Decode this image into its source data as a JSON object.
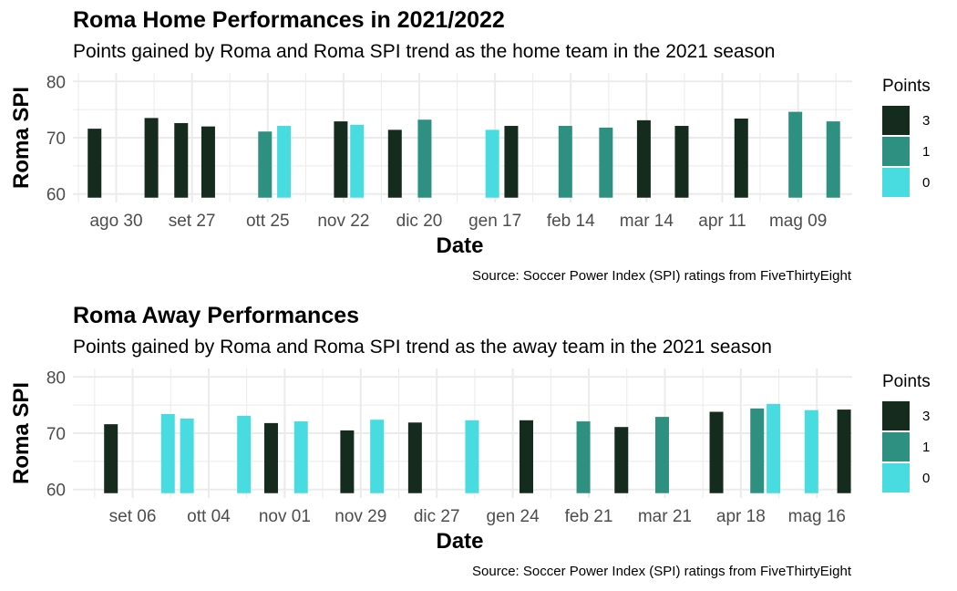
{
  "colors": {
    "points_3": "#152b1e",
    "points_1": "#2e9080",
    "points_0": "#48dce0",
    "grid": "#ebebeb"
  },
  "legend": {
    "title": "Points",
    "items": [
      {
        "label": "3",
        "color": "#152b1e"
      },
      {
        "label": "1",
        "color": "#2e9080"
      },
      {
        "label": "0",
        "color": "#48dce0"
      }
    ]
  },
  "source": "Source: Soccer Power Index (SPI) ratings from FiveThirtyEight",
  "chart_data": [
    {
      "type": "bar",
      "title": "Roma Home Performances in 2021/2022",
      "subtitle": "Points gained by Roma and Roma SPI trend as the home team in the 2021 season",
      "xlabel": "Date",
      "ylabel": "Roma SPI",
      "ylim": [
        58.5,
        81.5
      ],
      "yticks": [
        60,
        70,
        80
      ],
      "xlim": [
        "2021-08-14",
        "2022-05-29"
      ],
      "xtick_dates": [
        "2021-08-30",
        "2021-09-27",
        "2021-10-25",
        "2021-11-22",
        "2021-12-20",
        "2022-01-17",
        "2022-02-14",
        "2022-03-14",
        "2022-04-11",
        "2022-05-09"
      ],
      "xtick_labels": [
        "ago 30",
        "set 27",
        "ott 25",
        "nov 22",
        "dic 20",
        "gen 17",
        "feb 14",
        "mar 14",
        "apr 11",
        "mag 09"
      ],
      "grid": true,
      "legend_position": "right",
      "bars": [
        {
          "date": "2021-08-22",
          "spi": 71.6,
          "points": 3
        },
        {
          "date": "2021-09-12",
          "spi": 73.5,
          "points": 3
        },
        {
          "date": "2021-09-23",
          "spi": 72.6,
          "points": 3
        },
        {
          "date": "2021-10-03",
          "spi": 72.0,
          "points": 3
        },
        {
          "date": "2021-10-24",
          "spi": 71.1,
          "points": 1
        },
        {
          "date": "2021-10-31",
          "spi": 72.1,
          "points": 0
        },
        {
          "date": "2021-11-21",
          "spi": 72.9,
          "points": 3
        },
        {
          "date": "2021-11-27",
          "spi": 72.3,
          "points": 0
        },
        {
          "date": "2021-12-11",
          "spi": 71.4,
          "points": 3
        },
        {
          "date": "2021-12-22",
          "spi": 73.2,
          "points": 1
        },
        {
          "date": "2022-01-16",
          "spi": 71.4,
          "points": 0
        },
        {
          "date": "2022-01-23",
          "spi": 72.1,
          "points": 3
        },
        {
          "date": "2022-02-12",
          "spi": 72.1,
          "points": 1
        },
        {
          "date": "2022-02-27",
          "spi": 71.8,
          "points": 1
        },
        {
          "date": "2022-03-13",
          "spi": 73.1,
          "points": 3
        },
        {
          "date": "2022-03-27",
          "spi": 72.1,
          "points": 3
        },
        {
          "date": "2022-04-18",
          "spi": 73.4,
          "points": 3
        },
        {
          "date": "2022-05-08",
          "spi": 74.6,
          "points": 1
        },
        {
          "date": "2022-05-22",
          "spi": 72.9,
          "points": 1
        }
      ]
    },
    {
      "type": "bar",
      "title": "Roma Away Performances",
      "subtitle": "Points gained by Roma and Roma SPI trend as the away team in the 2021 season",
      "xlabel": "Date",
      "ylabel": "Roma SPI",
      "ylim": [
        58.5,
        81.5
      ],
      "yticks": [
        60,
        70,
        80
      ],
      "xlim": [
        "2021-08-15",
        "2022-05-29"
      ],
      "xtick_dates": [
        "2021-09-06",
        "2021-10-04",
        "2021-11-01",
        "2021-11-29",
        "2021-12-27",
        "2022-01-24",
        "2022-02-21",
        "2022-03-21",
        "2022-04-18",
        "2022-05-16"
      ],
      "xtick_labels": [
        "set 06",
        "ott 04",
        "nov 01",
        "nov 29",
        "dic 27",
        "gen 24",
        "feb 21",
        "mar 21",
        "apr 18",
        "mag 16"
      ],
      "grid": true,
      "legend_position": "right",
      "bars": [
        {
          "date": "2021-08-29",
          "spi": 71.6,
          "points": 3
        },
        {
          "date": "2021-09-19",
          "spi": 73.4,
          "points": 0
        },
        {
          "date": "2021-09-26",
          "spi": 72.6,
          "points": 0
        },
        {
          "date": "2021-10-17",
          "spi": 73.1,
          "points": 0
        },
        {
          "date": "2021-10-27",
          "spi": 71.8,
          "points": 3
        },
        {
          "date": "2021-11-07",
          "spi": 72.1,
          "points": 0
        },
        {
          "date": "2021-11-24",
          "spi": 70.5,
          "points": 3
        },
        {
          "date": "2021-12-05",
          "spi": 72.4,
          "points": 0
        },
        {
          "date": "2021-12-19",
          "spi": 71.9,
          "points": 3
        },
        {
          "date": "2022-01-09",
          "spi": 72.3,
          "points": 0
        },
        {
          "date": "2022-01-29",
          "spi": 72.3,
          "points": 3
        },
        {
          "date": "2022-02-19",
          "spi": 72.1,
          "points": 1
        },
        {
          "date": "2022-03-05",
          "spi": 71.1,
          "points": 3
        },
        {
          "date": "2022-03-20",
          "spi": 72.9,
          "points": 1
        },
        {
          "date": "2022-04-09",
          "spi": 73.8,
          "points": 3
        },
        {
          "date": "2022-04-24",
          "spi": 74.4,
          "points": 1
        },
        {
          "date": "2022-04-30",
          "spi": 75.2,
          "points": 0
        },
        {
          "date": "2022-05-14",
          "spi": 74.1,
          "points": 0
        },
        {
          "date": "2022-05-26",
          "spi": 74.2,
          "points": 3
        }
      ]
    }
  ]
}
